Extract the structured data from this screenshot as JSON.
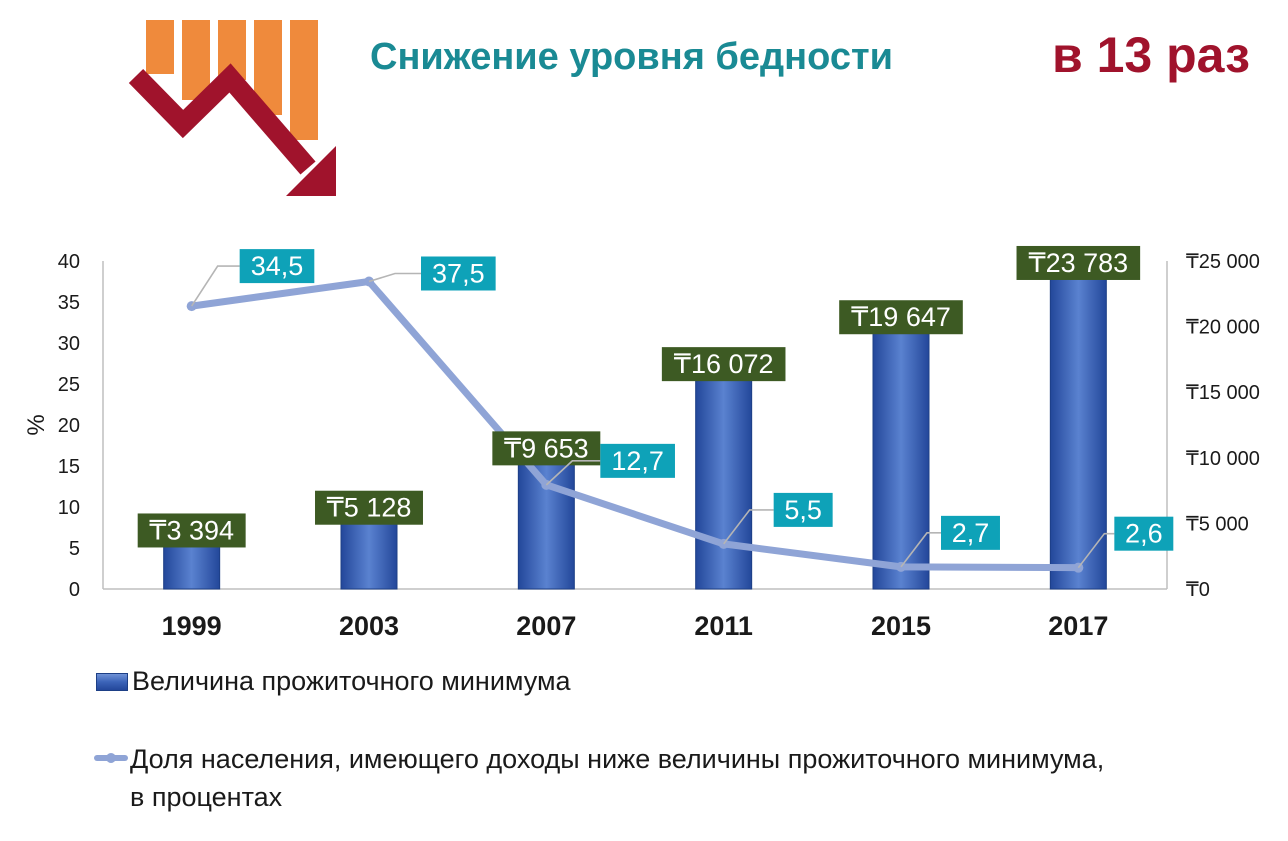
{
  "header": {
    "title": "Снижение уровня бедности",
    "headline": "в 13 раз"
  },
  "colors": {
    "title": "#1a8a94",
    "headline": "#a0132c",
    "logo_bars": "#ef8a3c",
    "logo_arrow": "#a0132c",
    "bar": "#3b63b8",
    "line": "#8fa4d6",
    "bar_label_bg": "#3d5a23",
    "line_label_bg": "#0ea2b8"
  },
  "icons": {
    "logo": "declining-bars-arrow-icon"
  },
  "chart_data": {
    "type": "bar+line",
    "categories": [
      "1999",
      "2003",
      "2007",
      "2011",
      "2015",
      "2017"
    ],
    "y_left": {
      "label": "%",
      "ticks": [
        "0",
        "5",
        "10",
        "15",
        "20",
        "25",
        "30",
        "35",
        "40"
      ],
      "range": [
        0,
        40
      ]
    },
    "y_right": {
      "ticks": [
        "₸0",
        "₸5 000",
        "₸10 000",
        "₸15 000",
        "₸20 000",
        "₸25 000"
      ],
      "range": [
        0,
        25000
      ]
    },
    "series": [
      {
        "name": "Величина прожиточного минимума",
        "type": "bar",
        "axis": "right",
        "values": [
          3394,
          5128,
          9653,
          16072,
          19647,
          23783
        ],
        "labels": [
          "₸3 394",
          "₸5 128",
          "₸9 653",
          "₸16 072",
          "₸19 647",
          "₸23 783"
        ]
      },
      {
        "name": "Доля населения, имеющего доходы ниже величины прожиточного минимума, в процентах",
        "type": "line",
        "axis": "left",
        "values": [
          34.5,
          37.5,
          12.7,
          5.5,
          2.7,
          2.6
        ],
        "labels": [
          "34,5",
          "37,5",
          "12,7",
          "5,5",
          "2,7",
          "2,6"
        ]
      }
    ],
    "grid": false,
    "legend_position": "bottom"
  },
  "legend": {
    "bar_label": "Величина прожиточного минимума",
    "line_label_1": "Доля населения, имеющего доходы ниже величины прожиточного минимума,",
    "line_label_2": "в процентах"
  }
}
